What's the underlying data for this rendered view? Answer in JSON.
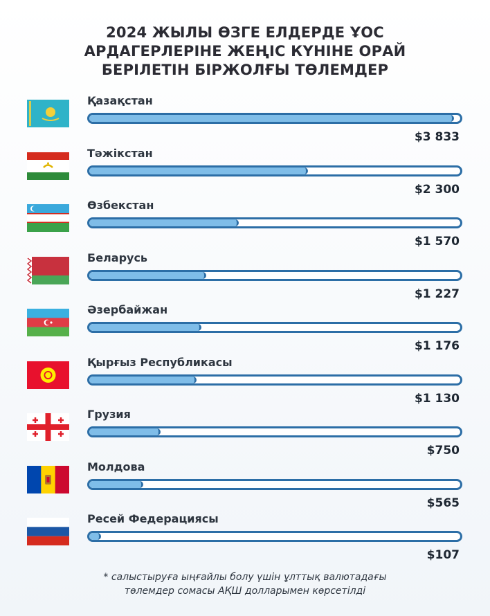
{
  "title_lines": [
    "2024 ЖЫЛЫ ӨЗГЕ ЕЛДЕРДЕ ҰОС",
    "АРДАГЕРЛЕРІНЕ ЖЕҢІС КҮНІНЕ ОРАЙ",
    "БЕРІЛЕТІН БІРЖОЛҒЫ ТӨЛЕМДЕР"
  ],
  "footnote_lines": [
    "* салыстыруға ыңғайлы болу үшін ұлттық валютадағы",
    "төлемдер сомасы АҚШ долларымен көрсетілді"
  ],
  "colors": {
    "bar_fill": "#7fbde8",
    "bar_border": "#2c6ea6",
    "track": "#ffffff"
  },
  "chart_data": {
    "type": "bar",
    "orientation": "horizontal",
    "title": "2024 ЖЫЛЫ ӨЗГЕ ЕЛДЕРДЕ ҰОС АРДАГЕРЛЕРІНЕ ЖЕҢІС КҮНІНЕ ОРАЙ БЕРІЛЕТІН БІРЖОЛҒЫ ТӨЛЕМДЕР",
    "unit": "USD",
    "xlim": [
      0,
      3900
    ],
    "items": [
      {
        "category": "Қазақстан",
        "value": 3833,
        "label": "$3 833",
        "flag_icon": "kazakhstan-flag-icon"
      },
      {
        "category": "Тәжікстан",
        "value": 2300,
        "label": "$2 300",
        "flag_icon": "tajikistan-flag-icon"
      },
      {
        "category": "Өзбекстан",
        "value": 1570,
        "label": "$1 570",
        "flag_icon": "uzbekistan-flag-icon"
      },
      {
        "category": "Беларусь",
        "value": 1227,
        "label": "$1 227",
        "flag_icon": "belarus-flag-icon"
      },
      {
        "category": "Әзербайжан",
        "value": 1176,
        "label": "$1 176",
        "flag_icon": "azerbaijan-flag-icon"
      },
      {
        "category": "Қырғыз Республикасы",
        "value": 1130,
        "label": "$1 130",
        "flag_icon": "kyrgyzstan-flag-icon"
      },
      {
        "category": "Грузия",
        "value": 750,
        "label": "$750",
        "flag_icon": "georgia-flag-icon"
      },
      {
        "category": "Молдова",
        "value": 565,
        "label": "$565",
        "flag_icon": "moldova-flag-icon"
      },
      {
        "category": "Ресей Федерациясы",
        "value": 107,
        "label": "$107",
        "flag_icon": "russia-flag-icon"
      }
    ]
  }
}
